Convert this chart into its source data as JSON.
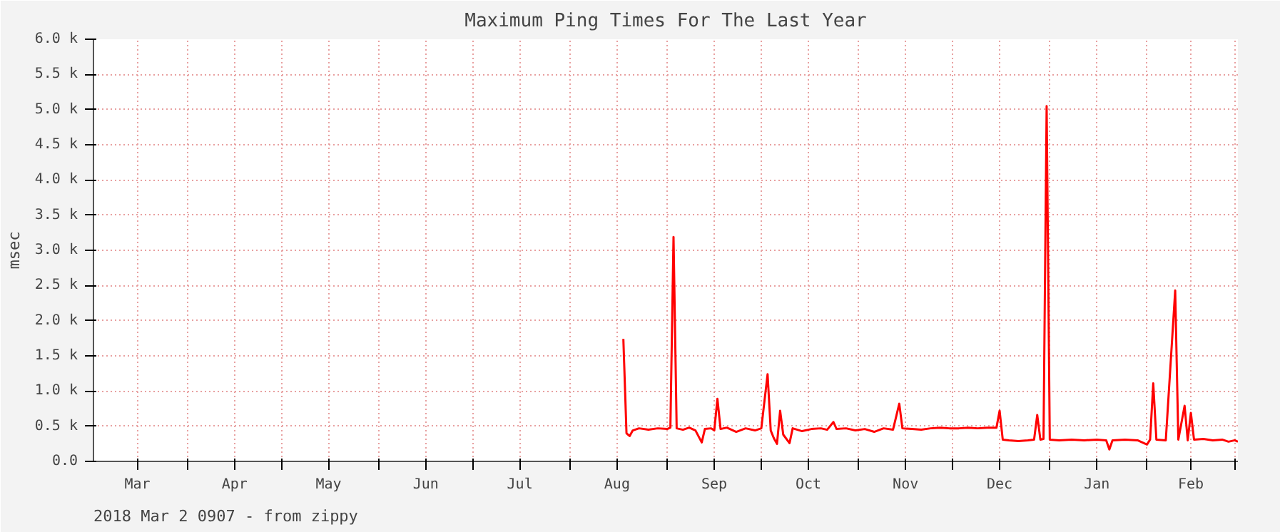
{
  "chart_data": {
    "type": "line",
    "title": "Maximum Ping Times For The Last Year",
    "ylabel": "msec",
    "annotations": [
      "2018 Mar  2 0907  -  from zippy"
    ],
    "xlim": [
      "2017-03-02",
      "2018-03-02"
    ],
    "xticks": [
      {
        "value": "2017-03-16",
        "label": "Mar"
      },
      {
        "value": "2017-04-01",
        "label": null
      },
      {
        "value": "2017-04-16",
        "label": "Apr"
      },
      {
        "value": "2017-05-01",
        "label": null
      },
      {
        "value": "2017-05-16",
        "label": "May"
      },
      {
        "value": "2017-06-01",
        "label": null
      },
      {
        "value": "2017-06-16",
        "label": "Jun"
      },
      {
        "value": "2017-07-01",
        "label": null
      },
      {
        "value": "2017-07-16",
        "label": "Jul"
      },
      {
        "value": "2017-08-01",
        "label": null
      },
      {
        "value": "2017-08-16",
        "label": "Aug"
      },
      {
        "value": "2017-09-01",
        "label": null
      },
      {
        "value": "2017-09-16",
        "label": "Sep"
      },
      {
        "value": "2017-10-01",
        "label": null
      },
      {
        "value": "2017-10-16",
        "label": "Oct"
      },
      {
        "value": "2017-11-01",
        "label": null
      },
      {
        "value": "2017-11-16",
        "label": "Nov"
      },
      {
        "value": "2017-12-01",
        "label": null
      },
      {
        "value": "2017-12-16",
        "label": "Dec"
      },
      {
        "value": "2018-01-01",
        "label": null
      },
      {
        "value": "2018-01-16",
        "label": "Jan"
      },
      {
        "value": "2018-02-01",
        "label": null
      },
      {
        "value": "2018-02-15",
        "label": "Feb"
      },
      {
        "value": "2018-03-01",
        "label": null
      }
    ],
    "ylim": [
      0,
      6000
    ],
    "yticks": [
      {
        "value": 0,
        "label": "0.0"
      },
      {
        "value": 500,
        "label": "0.5 k"
      },
      {
        "value": 1000,
        "label": "1.0 k"
      },
      {
        "value": 1500,
        "label": "1.5 k"
      },
      {
        "value": 2000,
        "label": "2.0 k"
      },
      {
        "value": 2500,
        "label": "2.5 k"
      },
      {
        "value": 3000,
        "label": "3.0 k"
      },
      {
        "value": 3500,
        "label": "3.5 k"
      },
      {
        "value": 4000,
        "label": "4.0 k"
      },
      {
        "value": 4500,
        "label": "4.5 k"
      },
      {
        "value": 5000,
        "label": "5.0 k"
      },
      {
        "value": 5500,
        "label": "5.5 k"
      },
      {
        "value": 6000,
        "label": "6.0 k"
      }
    ],
    "grid": true,
    "marker": "none",
    "line_style": "solid",
    "series": [
      {
        "color": "#ff0000",
        "x": [
          "2017-08-18",
          "2017-08-19",
          "2017-08-20",
          "2017-08-21",
          "2017-08-23",
          "2017-08-26",
          "2017-08-29",
          "2017-09-01",
          "2017-09-02",
          "2017-09-03",
          "2017-09-04",
          "2017-09-06",
          "2017-09-08",
          "2017-09-10",
          "2017-09-12",
          "2017-09-13",
          "2017-09-15",
          "2017-09-16",
          "2017-09-17",
          "2017-09-18",
          "2017-09-20",
          "2017-09-23",
          "2017-09-26",
          "2017-09-29",
          "2017-10-01",
          "2017-10-03",
          "2017-10-04",
          "2017-10-05",
          "2017-10-06",
          "2017-10-07",
          "2017-10-08",
          "2017-10-10",
          "2017-10-11",
          "2017-10-14",
          "2017-10-17",
          "2017-10-20",
          "2017-10-22",
          "2017-10-24",
          "2017-10-25",
          "2017-10-28",
          "2017-10-31",
          "2017-11-03",
          "2017-11-06",
          "2017-11-09",
          "2017-11-12",
          "2017-11-14",
          "2017-11-15",
          "2017-11-18",
          "2017-11-21",
          "2017-11-24",
          "2017-11-27",
          "2017-11-30",
          "2017-12-03",
          "2017-12-06",
          "2017-12-09",
          "2017-12-12",
          "2017-12-15",
          "2017-12-16",
          "2017-12-17",
          "2017-12-19",
          "2017-12-22",
          "2017-12-25",
          "2017-12-27",
          "2017-12-28",
          "2017-12-29",
          "2017-12-30",
          "2017-12-31",
          "2018-01-01",
          "2018-01-04",
          "2018-01-08",
          "2018-01-12",
          "2018-01-16",
          "2018-01-19",
          "2018-01-20",
          "2018-01-21",
          "2018-01-25",
          "2018-01-29",
          "2018-02-01",
          "2018-02-02",
          "2018-02-03",
          "2018-02-04",
          "2018-02-07",
          "2018-02-10",
          "2018-02-11",
          "2018-02-13",
          "2018-02-14",
          "2018-02-15",
          "2018-02-16",
          "2018-02-19",
          "2018-02-22",
          "2018-02-25",
          "2018-02-27",
          "2018-03-01",
          "2018-03-02"
        ],
        "values": [
          1740,
          400,
          360,
          440,
          470,
          450,
          470,
          460,
          480,
          3190,
          470,
          450,
          480,
          440,
          270,
          460,
          470,
          440,
          890,
          460,
          480,
          420,
          470,
          440,
          470,
          1240,
          440,
          330,
          250,
          720,
          380,
          260,
          470,
          430,
          460,
          470,
          450,
          560,
          460,
          470,
          440,
          460,
          420,
          470,
          450,
          820,
          470,
          460,
          450,
          470,
          480,
          470,
          470,
          480,
          470,
          480,
          480,
          720,
          310,
          300,
          290,
          300,
          310,
          660,
          310,
          320,
          5050,
          310,
          300,
          310,
          300,
          310,
          300,
          170,
          300,
          310,
          300,
          240,
          310,
          1110,
          310,
          300,
          2430,
          310,
          790,
          300,
          690,
          310,
          320,
          300,
          310,
          280,
          300,
          280
        ]
      }
    ]
  }
}
